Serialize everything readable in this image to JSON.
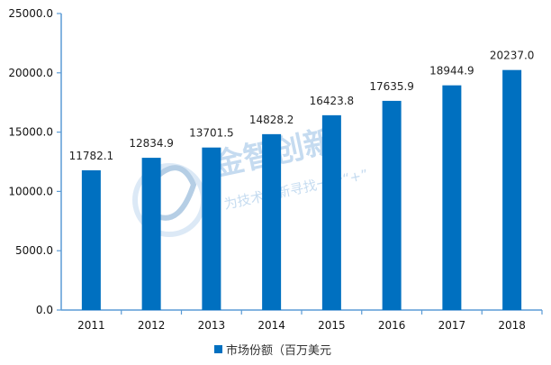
{
  "chart_data": {
    "type": "bar",
    "categories": [
      "2011",
      "2012",
      "2013",
      "2014",
      "2015",
      "2016",
      "2017",
      "2018"
    ],
    "series": [
      {
        "name": "市场份额（百万美元",
        "values": [
          11782.1,
          12834.9,
          13701.5,
          14828.2,
          16423.8,
          17635.9,
          18944.9,
          20237.0
        ],
        "labels": [
          "11782.1",
          "12834.9",
          "13701.5",
          "14828.2",
          "16423.8",
          "17635.9",
          "18944.9",
          "20237.0"
        ]
      }
    ],
    "title": "",
    "xlabel": "",
    "ylabel": "",
    "ylim": [
      0,
      25000
    ],
    "yticks": [
      0,
      5000,
      10000,
      15000,
      20000,
      25000
    ],
    "ytick_labels": [
      "0.0",
      "5000.0",
      "10000.0",
      "15000.0",
      "20000.0",
      "25000.0"
    ],
    "grid": false,
    "legend_position": "bottom",
    "bar_color": "#0070C0",
    "axis_color": "#5B9BD5"
  },
  "watermark": {
    "brand": "金智创新",
    "tagline": "为技术创新寻找一个“+”"
  }
}
